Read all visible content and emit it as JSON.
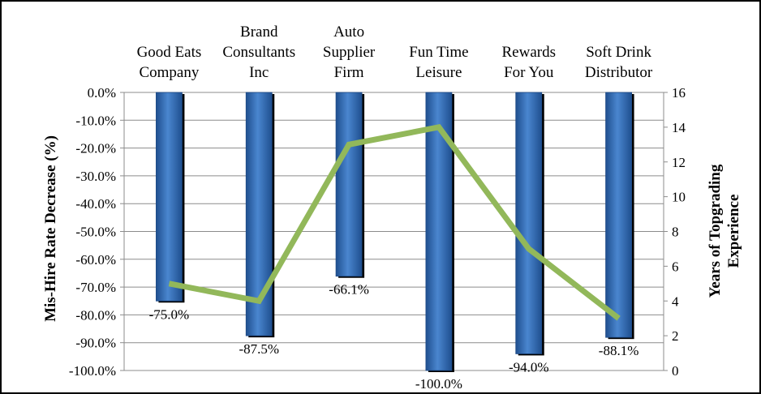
{
  "chart_data": {
    "type": "bar+line",
    "categories": [
      [
        "Good Eats",
        "Company"
      ],
      [
        "Brand",
        "Consultants",
        "Inc"
      ],
      [
        "Auto",
        "Supplier",
        "Firm"
      ],
      [
        "Fun Time",
        "Leisure"
      ],
      [
        "Rewards",
        "For You"
      ],
      [
        "Soft Drink",
        "Distributor"
      ]
    ],
    "bar_series": {
      "values": [
        -75.0,
        -87.5,
        -66.1,
        -100.0,
        -94.0,
        -88.1
      ],
      "data_labels": [
        "-75.0%",
        "-87.5%",
        "-66.1%",
        "-100.0%",
        "-94.0%",
        "-88.1%"
      ],
      "color": "#3f78c4"
    },
    "line_series": {
      "values": [
        5,
        4,
        13,
        14,
        7,
        3
      ],
      "color": "#92b85a"
    },
    "y_left": {
      "label": "Mis-Hire Rate Decrease (%)",
      "ylim": [
        -100,
        0
      ],
      "ticks": [
        "0.0%",
        "-10.0%",
        "-20.0%",
        "-30.0%",
        "-40.0%",
        "-50.0%",
        "-60.0%",
        "-70.0%",
        "-80.0%",
        "-90.0%",
        "-100.0%"
      ]
    },
    "y_right": {
      "label_lines": [
        "Years  of Topgrading",
        "Experience"
      ],
      "ylim": [
        0,
        16
      ],
      "ticks": [
        "16",
        "14",
        "12",
        "10",
        "8",
        "6",
        "4",
        "2",
        "0"
      ]
    },
    "grid": true
  }
}
